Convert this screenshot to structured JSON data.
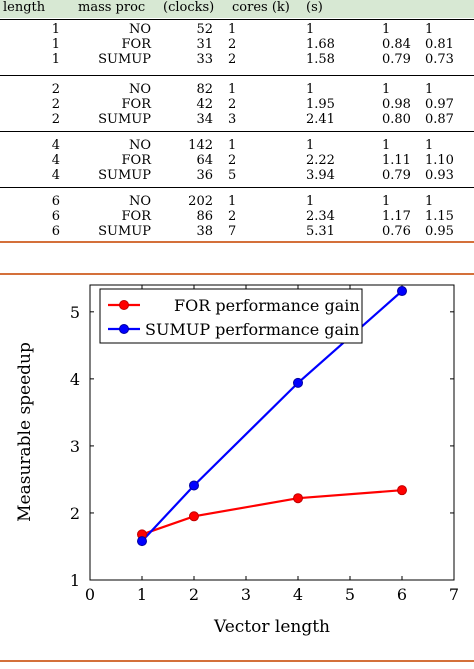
{
  "table": {
    "headers": [
      "length",
      "mass proc",
      "(clocks)",
      "cores (k)",
      "(s)",
      "",
      ""
    ],
    "groups": [
      {
        "rows": [
          [
            "1",
            "NO",
            "52",
            "1",
            "1",
            "1",
            "1"
          ],
          [
            "1",
            "FOR",
            "31",
            "2",
            "1.68",
            "0.84",
            "0.81"
          ],
          [
            "1",
            "SUMUP",
            "33",
            "2",
            "1.58",
            "0.79",
            "0.73"
          ]
        ]
      },
      {
        "rows": [
          [
            "2",
            "NO",
            "82",
            "1",
            "1",
            "1",
            "1"
          ],
          [
            "2",
            "FOR",
            "42",
            "2",
            "1.95",
            "0.98",
            "0.97"
          ],
          [
            "2",
            "SUMUP",
            "34",
            "3",
            "2.41",
            "0.80",
            "0.87"
          ]
        ]
      },
      {
        "rows": [
          [
            "4",
            "NO",
            "142",
            "1",
            "1",
            "1",
            "1"
          ],
          [
            "4",
            "FOR",
            "64",
            "2",
            "2.22",
            "1.11",
            "1.10"
          ],
          [
            "4",
            "SUMUP",
            "36",
            "5",
            "3.94",
            "0.79",
            "0.93"
          ]
        ]
      },
      {
        "rows": [
          [
            "6",
            "NO",
            "202",
            "1",
            "1",
            "1",
            "1"
          ],
          [
            "6",
            "FOR",
            "86",
            "2",
            "2.34",
            "1.17",
            "1.15"
          ],
          [
            "6",
            "SUMUP",
            "38",
            "7",
            "5.31",
            "0.76",
            "0.95"
          ]
        ]
      }
    ]
  },
  "chart_data": {
    "type": "line",
    "xlabel": "Vector length",
    "ylabel": "Measurable speedup",
    "xlim": [
      0,
      7
    ],
    "ylim": [
      1,
      5.4
    ],
    "xticks": [
      "0",
      "1",
      "2",
      "3",
      "4",
      "5",
      "6",
      "7"
    ],
    "yticks": [
      "1",
      "2",
      "3",
      "4",
      "5"
    ],
    "grid": false,
    "legend_position": "top-left",
    "x": [
      1,
      2,
      4,
      6
    ],
    "series": [
      {
        "name": "FOR performance gain",
        "color": "#ff0000",
        "values": [
          1.68,
          1.95,
          2.22,
          2.34
        ]
      },
      {
        "name": "SUMUP performance gain",
        "color": "#0000ff",
        "values": [
          1.58,
          2.41,
          3.94,
          5.31
        ]
      }
    ]
  },
  "colors": {
    "header_band": "#d7e8d3",
    "accent_rule": "#d4703a"
  }
}
